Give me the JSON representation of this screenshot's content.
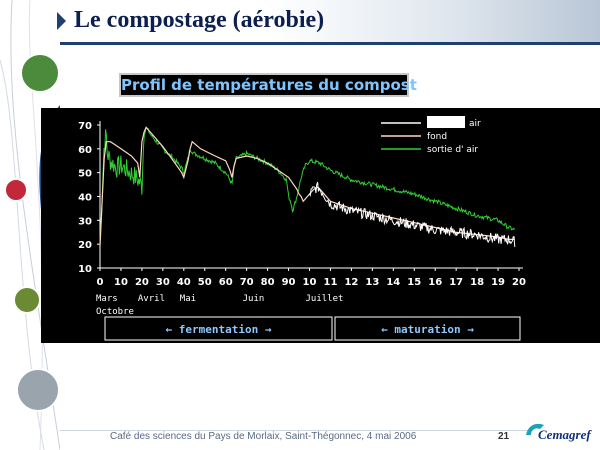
{
  "slide": {
    "title": "Le compostage (aérobie)",
    "footer": "Café des sciences du Pays de Morlaix, Saint-Thégonnec, 4 mai 2006",
    "page_number": "21",
    "logo_text": "Cemagref"
  },
  "chart_data": {
    "type": "line",
    "title": "Profil de températures du compost",
    "ylim": [
      10,
      70
    ],
    "yticks": [
      10,
      20,
      30,
      40,
      50,
      60,
      70
    ],
    "xticks": [
      "0",
      "10",
      "20",
      "30",
      "40",
      "50",
      "60",
      "70",
      "80",
      "90",
      "10",
      "11",
      "12",
      "13",
      "14",
      "15",
      "16",
      "17",
      "18",
      "19",
      "20"
    ],
    "month_labels": [
      {
        "label": "Mars",
        "tick": 0
      },
      {
        "label": "Avril",
        "tick": 2
      },
      {
        "label": "Mai",
        "tick": 4
      },
      {
        "label": "Juin",
        "tick": 7
      },
      {
        "label": "Juillet",
        "tick": 10
      }
    ],
    "month_labels_row2": [
      {
        "label": "Octobre",
        "tick": 0
      }
    ],
    "phases": [
      {
        "label": "fermentation",
        "from_tick": 0,
        "to_tick": 11
      },
      {
        "label": "maturation",
        "from_tick": 11,
        "to_tick": 20
      }
    ],
    "legend": [
      "air",
      "fond",
      "sortie d' air"
    ],
    "legend_position": "top-right",
    "colors": {
      "air": "#ffffff",
      "fond": "#ffd7c2",
      "sortie": "#33cc33",
      "phase_text": "#8ec8ff",
      "tick_text": "#ffffff"
    },
    "series": [
      {
        "name": "fond",
        "style": "smooth",
        "points": [
          [
            0.0,
            19
          ],
          [
            0.1,
            38
          ],
          [
            0.2,
            56
          ],
          [
            0.3,
            63
          ],
          [
            0.5,
            63
          ],
          [
            1.0,
            60
          ],
          [
            1.5,
            57
          ],
          [
            1.8,
            54
          ],
          [
            1.9,
            48
          ],
          [
            2.0,
            63
          ],
          [
            2.1,
            67
          ],
          [
            2.2,
            69
          ],
          [
            2.5,
            66
          ],
          [
            3.0,
            61
          ],
          [
            3.5,
            55
          ],
          [
            3.9,
            50
          ],
          [
            4.0,
            48
          ],
          [
            4.2,
            55
          ],
          [
            4.3,
            60
          ],
          [
            4.4,
            63
          ],
          [
            4.8,
            60
          ],
          [
            5.5,
            57
          ],
          [
            6.0,
            55
          ],
          [
            6.2,
            51
          ],
          [
            6.3,
            48
          ],
          [
            6.4,
            53
          ],
          [
            6.5,
            56
          ],
          [
            7.0,
            57
          ],
          [
            7.5,
            56
          ],
          [
            8.0,
            54
          ],
          [
            8.5,
            51
          ],
          [
            9.0,
            48
          ],
          [
            9.4,
            43
          ],
          [
            9.5,
            41
          ],
          [
            9.6,
            40
          ],
          [
            9.7,
            38
          ],
          [
            9.8,
            39
          ],
          [
            10.0,
            41
          ],
          [
            10.2,
            43
          ],
          [
            10.4,
            44
          ],
          [
            10.6,
            42
          ],
          [
            11.0,
            38
          ],
          [
            12.0,
            35
          ],
          [
            13.0,
            33
          ],
          [
            14.0,
            31
          ],
          [
            15.0,
            29
          ],
          [
            16.0,
            27
          ],
          [
            17.0,
            25
          ],
          [
            18.0,
            24
          ],
          [
            19.0,
            23
          ],
          [
            19.5,
            22
          ],
          [
            19.8,
            22
          ]
        ]
      },
      {
        "name": "air",
        "style": "noisy",
        "points": [
          [
            10.0,
            41
          ],
          [
            10.2,
            43
          ],
          [
            10.4,
            44
          ],
          [
            10.6,
            42
          ],
          [
            11.0,
            37
          ],
          [
            12.0,
            34
          ],
          [
            13.0,
            32
          ],
          [
            14.0,
            30
          ],
          [
            15.0,
            28
          ],
          [
            16.0,
            26
          ],
          [
            17.0,
            25
          ],
          [
            18.0,
            24
          ],
          [
            19.0,
            22
          ],
          [
            19.5,
            22
          ],
          [
            19.8,
            21
          ]
        ]
      },
      {
        "name": "sortie d' air",
        "style": "noisy",
        "points": [
          [
            0.0,
            20
          ],
          [
            0.1,
            40
          ],
          [
            0.2,
            62
          ],
          [
            0.3,
            66
          ],
          [
            0.35,
            58
          ],
          [
            0.5,
            55
          ],
          [
            0.8,
            52
          ],
          [
            1.0,
            53
          ],
          [
            1.3,
            51
          ],
          [
            1.6,
            49
          ],
          [
            1.9,
            46
          ],
          [
            2.0,
            44
          ],
          [
            2.1,
            66
          ],
          [
            2.2,
            69
          ],
          [
            2.5,
            65
          ],
          [
            3.0,
            60
          ],
          [
            3.5,
            56
          ],
          [
            3.9,
            52
          ],
          [
            4.0,
            50
          ],
          [
            4.2,
            56
          ],
          [
            4.3,
            60
          ],
          [
            4.5,
            58
          ],
          [
            5.0,
            56
          ],
          [
            5.5,
            54
          ],
          [
            6.0,
            50
          ],
          [
            6.2,
            47
          ],
          [
            6.3,
            45
          ],
          [
            6.4,
            52
          ],
          [
            6.5,
            56
          ],
          [
            7.0,
            58
          ],
          [
            7.5,
            56
          ],
          [
            8.0,
            54
          ],
          [
            8.5,
            51
          ],
          [
            8.9,
            47
          ],
          [
            9.0,
            40
          ],
          [
            9.1,
            38
          ],
          [
            9.2,
            34
          ],
          [
            9.4,
            40
          ],
          [
            9.6,
            48
          ],
          [
            9.8,
            53
          ],
          [
            10.0,
            55
          ],
          [
            10.5,
            54
          ],
          [
            11.0,
            51
          ],
          [
            11.5,
            49
          ],
          [
            12.0,
            47
          ],
          [
            13.0,
            45
          ],
          [
            14.0,
            43
          ],
          [
            15.0,
            41
          ],
          [
            16.0,
            38
          ],
          [
            17.0,
            35
          ],
          [
            18.0,
            32
          ],
          [
            19.0,
            30
          ],
          [
            19.5,
            27
          ],
          [
            19.8,
            26
          ]
        ]
      }
    ]
  }
}
